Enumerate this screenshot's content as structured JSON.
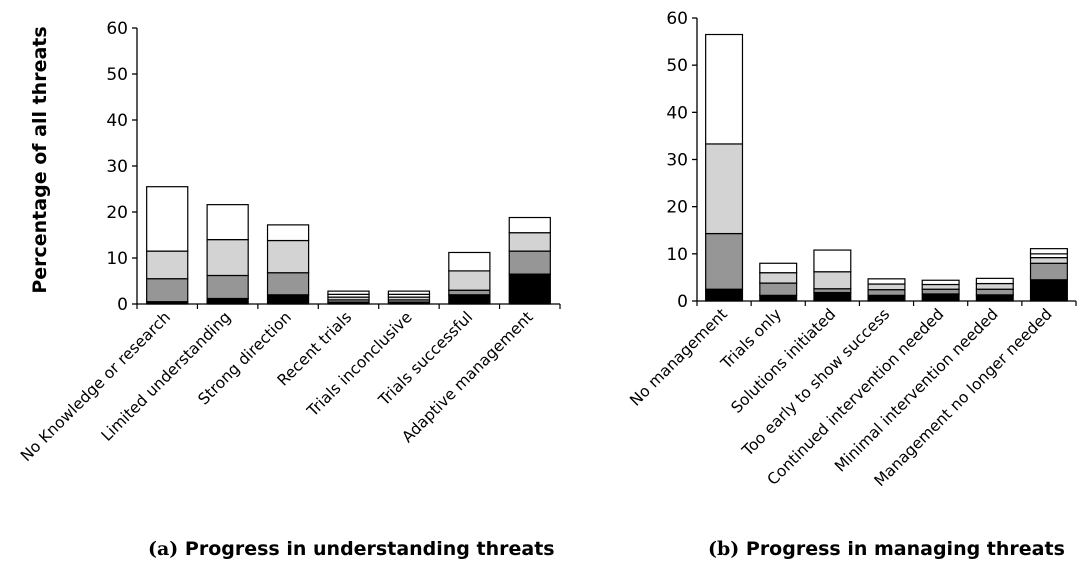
{
  "ylabel": "Percentage of all threats",
  "captions": {
    "a_prefix": "(a)",
    "a_text": "Progress in understanding threats",
    "b_prefix": "(b)",
    "b_text": "Progress in managing threats"
  },
  "colors": {
    "segments": [
      "#000000",
      "#969696",
      "#d3d3d3",
      "#ffffff",
      "#ffffff"
    ],
    "stroke": "#000000"
  },
  "chart_data": [
    {
      "type": "bar",
      "stacked": true,
      "ylim": [
        0,
        60
      ],
      "yticks": [
        0,
        10,
        20,
        30,
        40,
        50,
        60
      ],
      "grid": false,
      "categories": [
        "No Knowledge or research",
        "Limited understanding",
        "Strong direction",
        "Recent trials",
        "Trials inconclusive",
        "Trials successful",
        "Adaptive management"
      ],
      "stacks": [
        [
          0.5,
          5.0,
          6.0,
          14.0
        ],
        [
          1.2,
          5.0,
          7.8,
          7.6
        ],
        [
          2.0,
          4.8,
          7.0,
          3.4
        ],
        [
          0.4,
          0.5,
          0.6,
          0.6,
          0.7
        ],
        [
          0.4,
          0.5,
          0.6,
          0.6,
          0.7
        ],
        [
          2.0,
          1.0,
          4.2,
          4.0
        ],
        [
          6.5,
          5.0,
          4.0,
          3.3
        ]
      ]
    },
    {
      "type": "bar",
      "stacked": true,
      "ylim": [
        0,
        60
      ],
      "yticks": [
        0,
        10,
        20,
        30,
        40,
        50,
        60
      ],
      "grid": false,
      "categories": [
        "No management",
        "Trials only",
        "Solutions initiated",
        "Too early to show success",
        "Continued intervention needed",
        "Minimal intervention needed",
        "Management no longer needed"
      ],
      "stacks": [
        [
          2.5,
          11.8,
          19.0,
          23.2
        ],
        [
          1.2,
          2.6,
          2.2,
          2.0
        ],
        [
          1.8,
          0.8,
          3.6,
          4.6
        ],
        [
          1.2,
          1.2,
          1.2,
          1.1
        ],
        [
          1.5,
          1.0,
          1.0,
          0.9
        ],
        [
          1.3,
          1.2,
          1.2,
          1.1
        ],
        [
          4.5,
          3.5,
          1.2,
          0.8,
          1.1
        ]
      ]
    }
  ]
}
